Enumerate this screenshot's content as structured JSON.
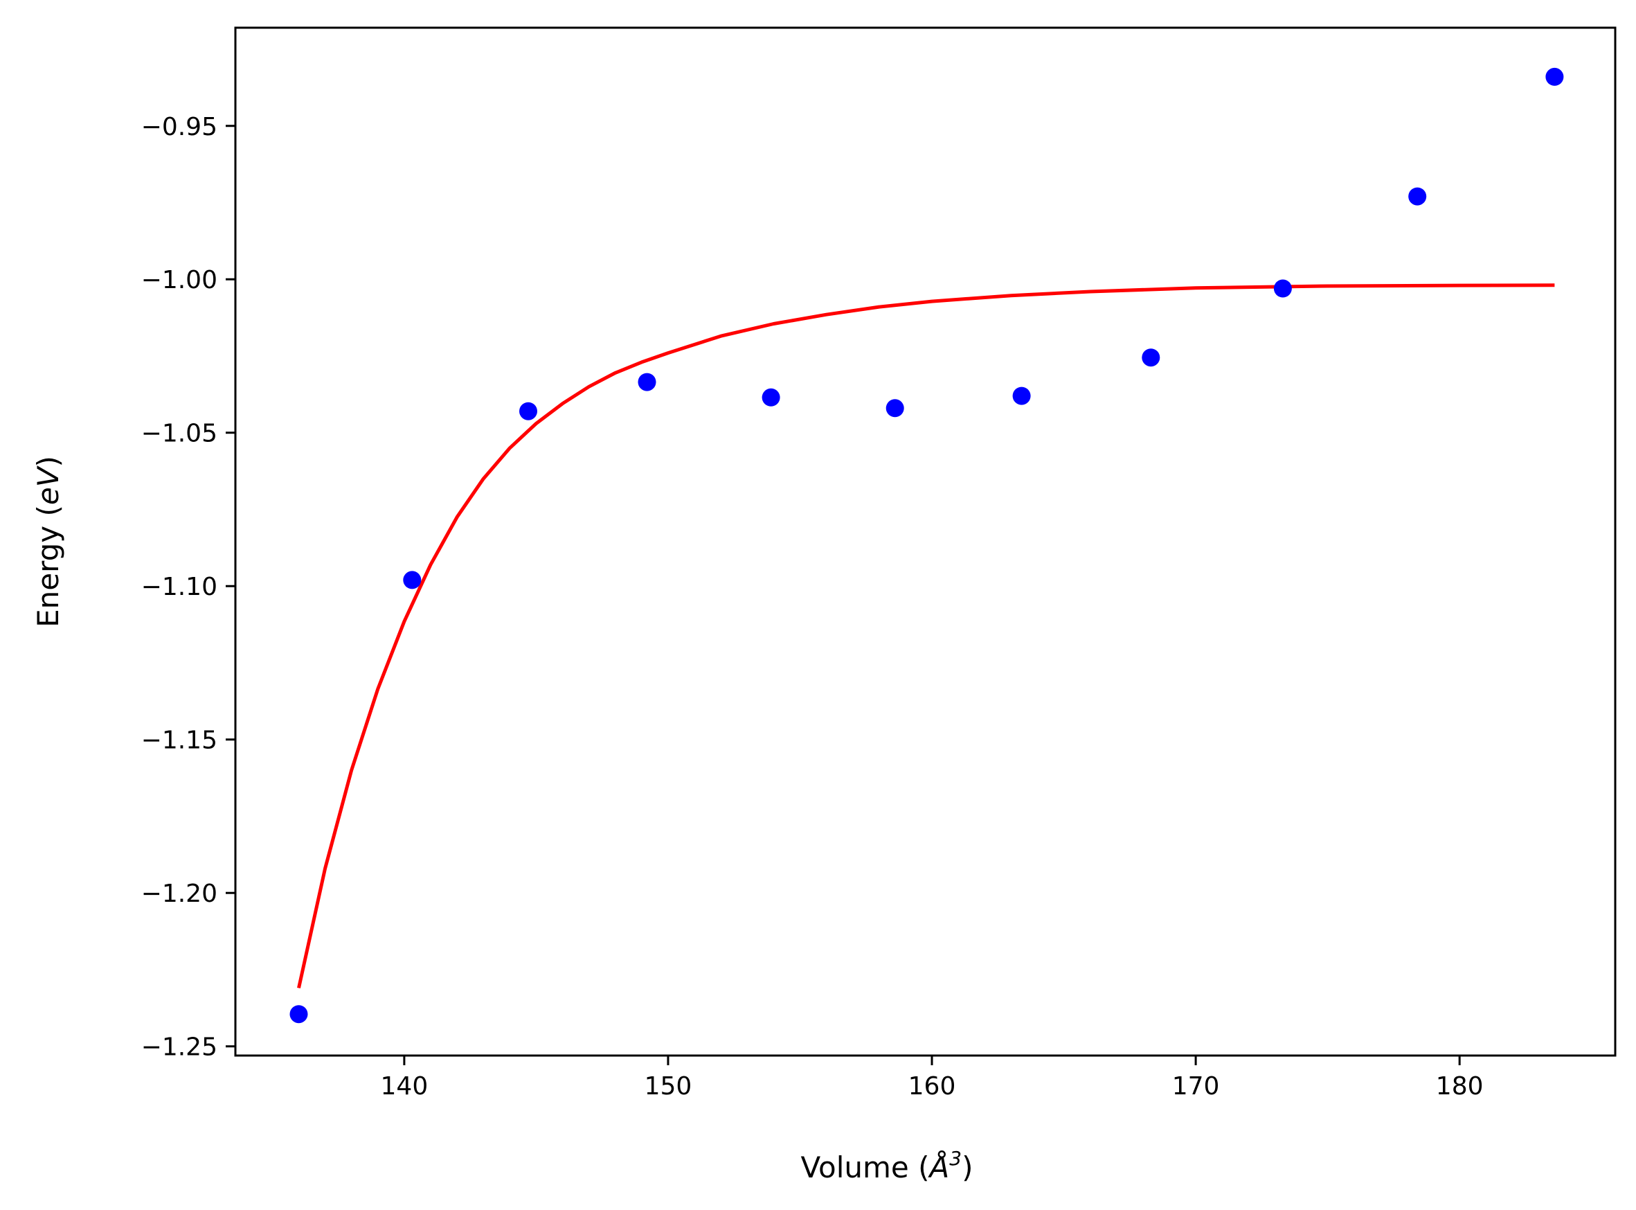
{
  "chart_data": {
    "type": "scatter",
    "title": "",
    "xlabel": {
      "prefix": "Volume (",
      "symbol": "Å",
      "superscript": "3",
      "suffix": ")"
    },
    "ylabel": {
      "prefix": "Energy (",
      "italic": "eV",
      "suffix": ")"
    },
    "xlim": [
      133.6,
      185.9
    ],
    "ylim": [
      -1.253,
      -0.918
    ],
    "xticks": [
      {
        "value": 140,
        "label": "140"
      },
      {
        "value": 150,
        "label": "150"
      },
      {
        "value": 160,
        "label": "160"
      },
      {
        "value": 170,
        "label": "170"
      },
      {
        "value": 180,
        "label": "180"
      }
    ],
    "yticks": [
      {
        "value": -0.95,
        "label": "−0.95"
      },
      {
        "value": -1.0,
        "label": "−1.00"
      },
      {
        "value": -1.05,
        "label": "−1.05"
      },
      {
        "value": -1.1,
        "label": "−1.10"
      },
      {
        "value": -1.15,
        "label": "−1.15"
      },
      {
        "value": -1.2,
        "label": "−1.20"
      },
      {
        "value": -1.25,
        "label": "−1.25"
      }
    ],
    "grid": false,
    "series": [
      {
        "kind": "points",
        "color": "#0000ff",
        "x": [
          136.0,
          140.3,
          144.7,
          149.2,
          153.9,
          158.6,
          163.4,
          168.3,
          173.3,
          178.4,
          183.6
        ],
        "y": [
          -1.2395,
          -1.098,
          -1.043,
          -1.0335,
          -1.0385,
          -1.042,
          -1.038,
          -1.0255,
          -1.003,
          -0.973,
          -0.934
        ]
      },
      {
        "kind": "line",
        "color": "#ff0000",
        "x": [
          136.0,
          137.0,
          138.0,
          139.0,
          140.0,
          141.0,
          142.0,
          143.0,
          144.0,
          145.0,
          146.0,
          147.0,
          148.0,
          149.0,
          150.0,
          152.0,
          154.0,
          156.0,
          158.0,
          160.0,
          163.0,
          166.0,
          170.0,
          175.0,
          180.0,
          183.6
        ],
        "y": [
          -1.231,
          -1.192,
          -1.16,
          -1.1335,
          -1.1115,
          -1.093,
          -1.0775,
          -1.065,
          -1.055,
          -1.047,
          -1.0405,
          -1.035,
          -1.0305,
          -1.027,
          -1.024,
          -1.0185,
          -1.0145,
          -1.0115,
          -1.009,
          -1.0072,
          -1.0053,
          -1.004,
          -1.0028,
          -1.0022,
          -1.002,
          -1.0019
        ]
      }
    ]
  }
}
